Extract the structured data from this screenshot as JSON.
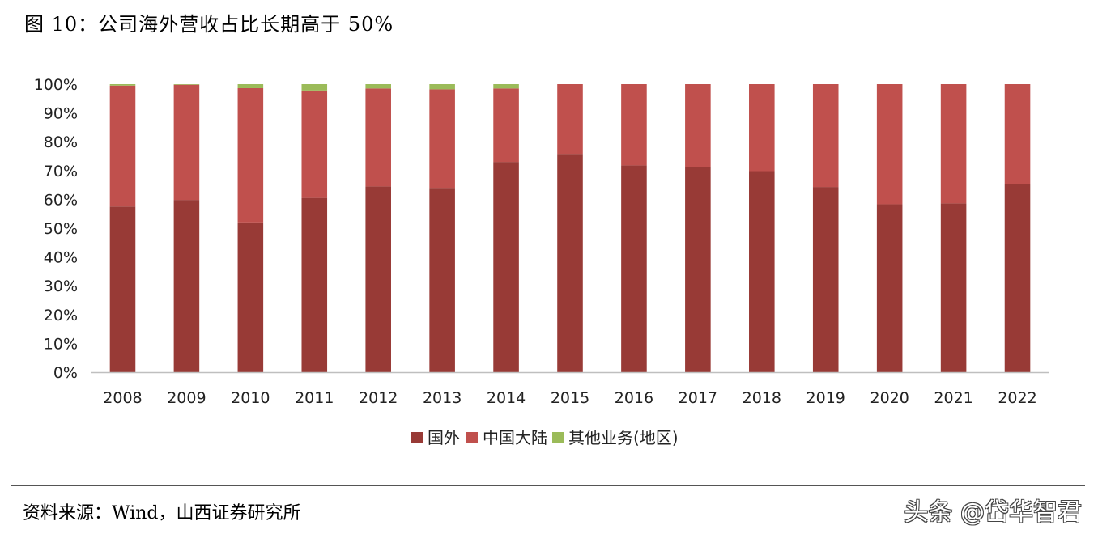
{
  "header": {
    "title": "图 10：公司海外营收占比长期高于 50%"
  },
  "footer": {
    "source": "资料来源：Wind，山西证券研究所",
    "watermark": "头条 @岱华智君"
  },
  "chart_data": {
    "type": "bar",
    "stacked": true,
    "title": "",
    "xlabel": "",
    "ylabel": "",
    "ylim": [
      0,
      100
    ],
    "y_ticks": [
      "0%",
      "10%",
      "20%",
      "30%",
      "40%",
      "50%",
      "60%",
      "70%",
      "80%",
      "90%",
      "100%"
    ],
    "categories": [
      "2008",
      "2009",
      "2010",
      "2011",
      "2012",
      "2013",
      "2014",
      "2015",
      "2016",
      "2017",
      "2018",
      "2019",
      "2020",
      "2021",
      "2022"
    ],
    "series": [
      {
        "name": "国外",
        "color": "#983a36",
        "values": [
          57.5,
          59.8,
          52.0,
          60.5,
          64.5,
          64.0,
          73.0,
          75.8,
          71.8,
          71.3,
          69.8,
          64.3,
          58.3,
          58.6,
          65.3
        ]
      },
      {
        "name": "中国大陆",
        "color": "#c0504d",
        "values": [
          42.0,
          40.0,
          46.6,
          37.3,
          34.0,
          34.2,
          25.5,
          24.2,
          28.2,
          28.7,
          30.2,
          35.7,
          41.7,
          41.4,
          34.7
        ]
      },
      {
        "name": "其他业务(地区)",
        "color": "#9bbb59",
        "values": [
          0.5,
          0.2,
          1.4,
          2.2,
          1.5,
          1.8,
          1.5,
          0.0,
          0.0,
          0.0,
          0.0,
          0.0,
          0.0,
          0.0,
          0.0
        ]
      }
    ],
    "legend_position": "bottom",
    "grid": false
  }
}
